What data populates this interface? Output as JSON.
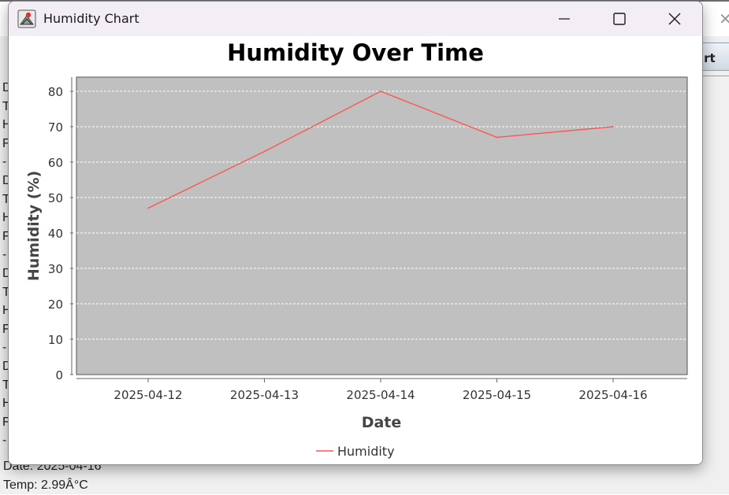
{
  "background_app": {
    "top_right_close": "✕",
    "chart_button_label": "art",
    "log_first_chars": [
      "D",
      "T",
      "H",
      "F",
      "-",
      "D",
      "T",
      "H",
      "F",
      "-",
      "D",
      "T",
      "H",
      "F",
      "-",
      "D",
      "T",
      "H",
      "F",
      "-"
    ],
    "log_lines": [
      "Date: 2025-04-16",
      "Temp: 2.99Â°C"
    ]
  },
  "window": {
    "title": "Humidity Chart",
    "colors": {
      "titlebar": "#f3eef5",
      "plot_bg": "#c0c0c0",
      "series": "#ff5555"
    }
  },
  "chart_data": {
    "type": "line",
    "title": "Humidity Over Time",
    "xlabel": "Date",
    "ylabel": "Humidity (%)",
    "categories": [
      "2025-04-12",
      "2025-04-13",
      "2025-04-14",
      "2025-04-15",
      "2025-04-16"
    ],
    "series": [
      {
        "name": "Humidity",
        "values": [
          47,
          63,
          80,
          67,
          70
        ]
      }
    ],
    "ylim": [
      0,
      84
    ],
    "yticks": [
      0,
      10,
      20,
      30,
      40,
      50,
      60,
      70,
      80
    ],
    "grid": true,
    "legend_position": "bottom"
  }
}
